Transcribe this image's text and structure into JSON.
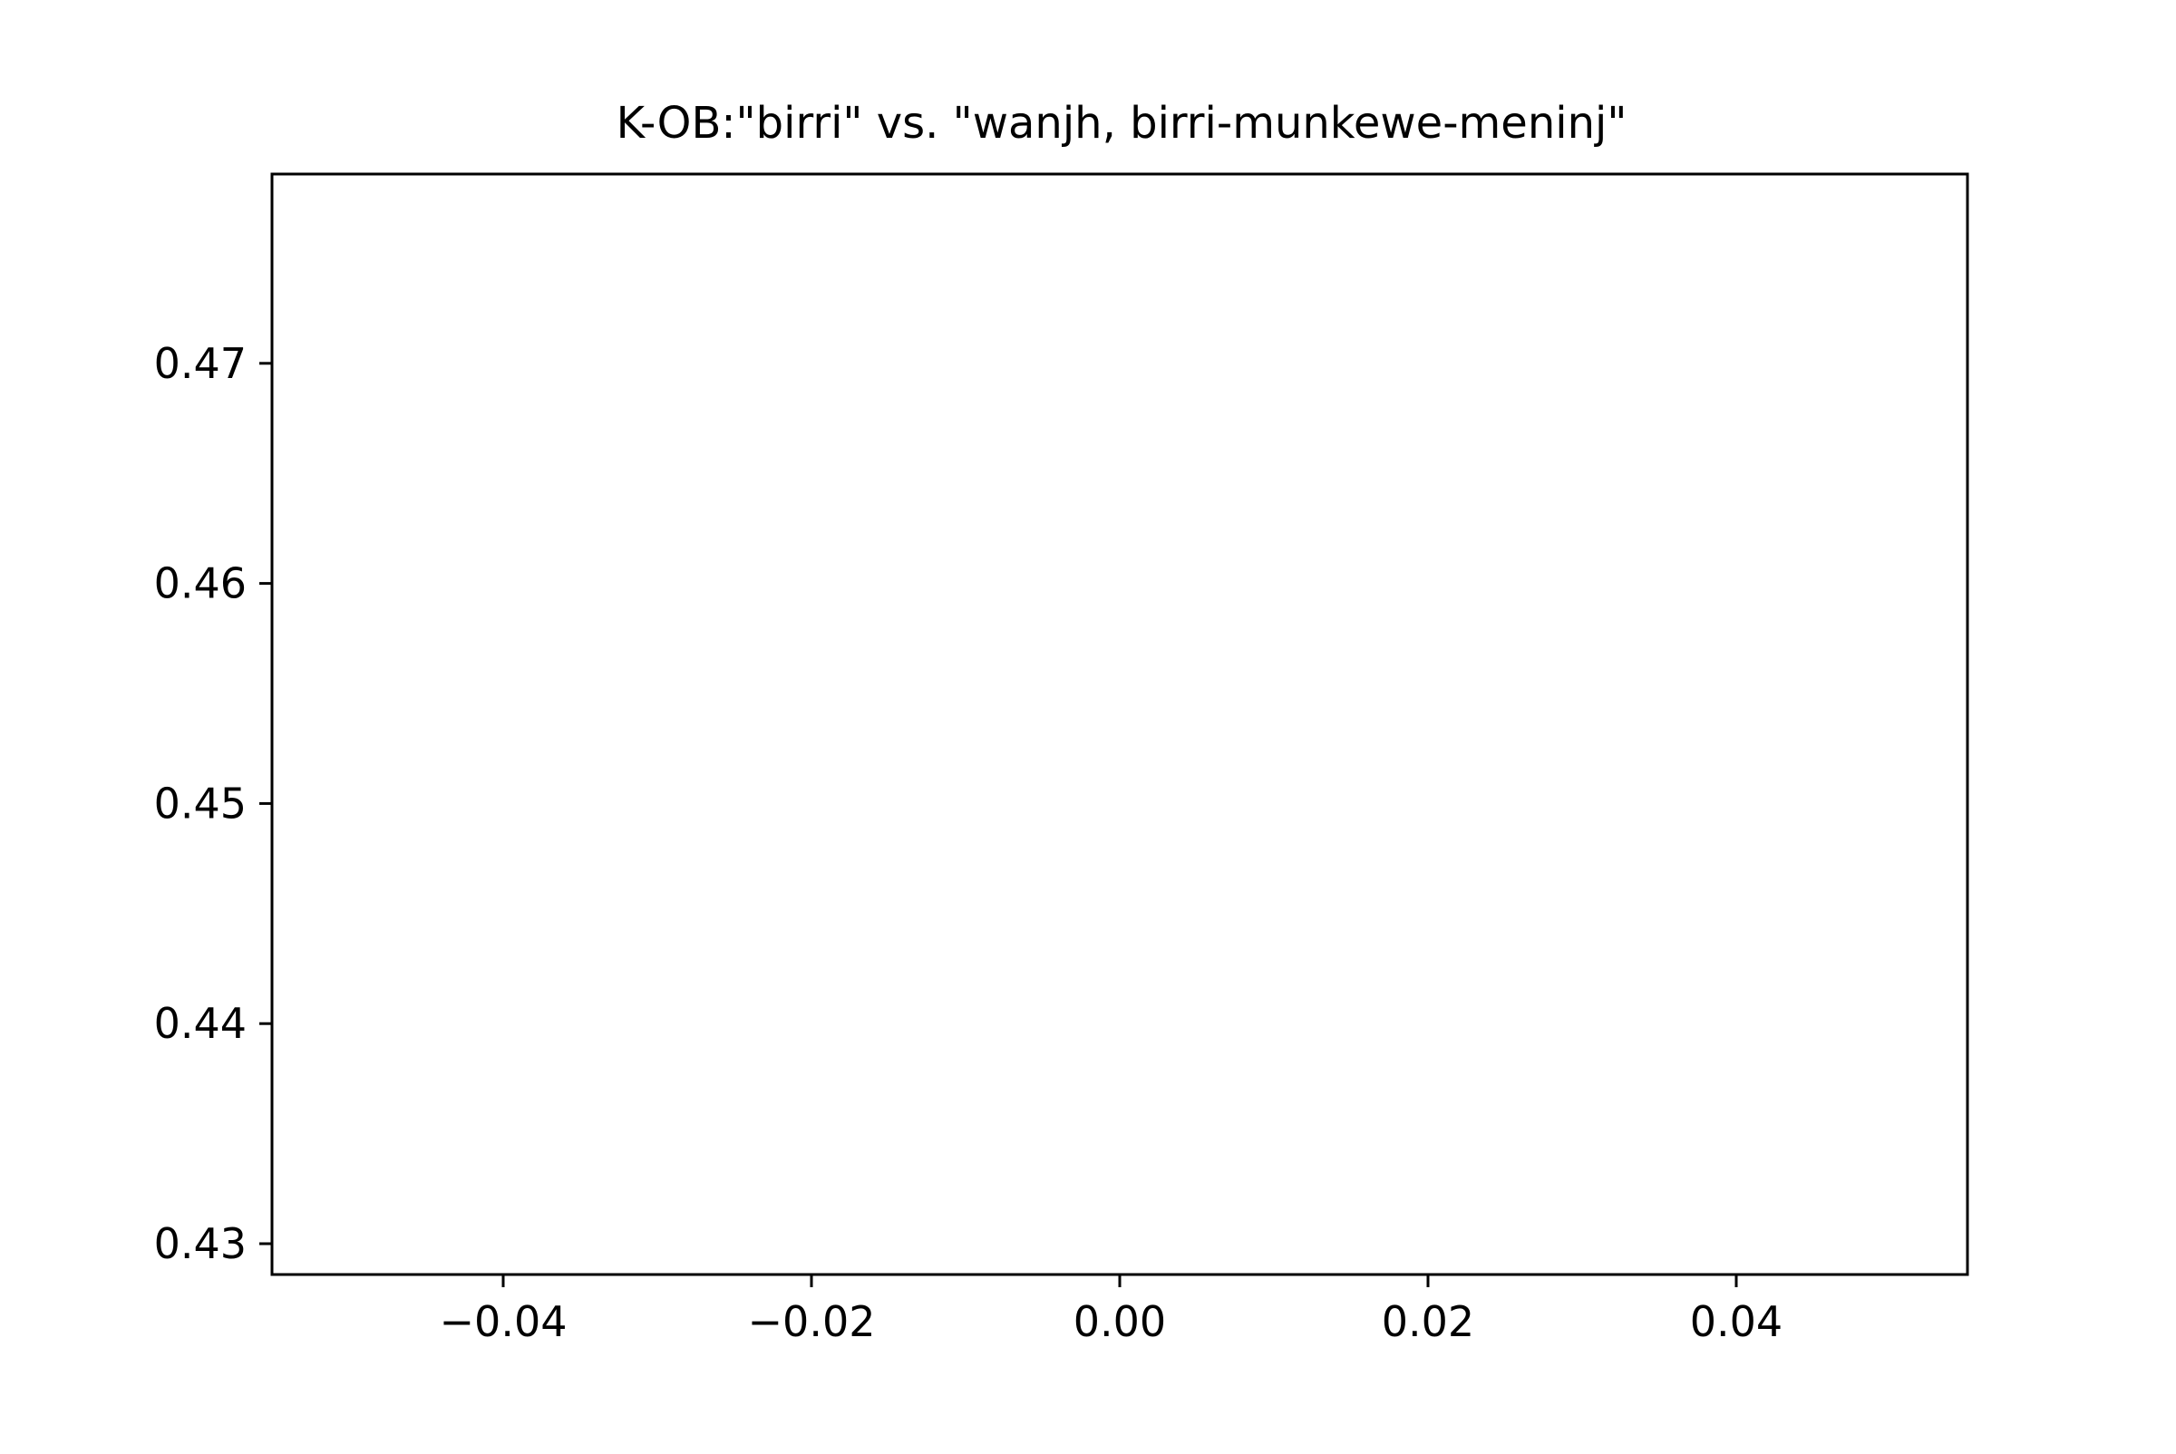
{
  "chart_data": {
    "type": "scatter",
    "title": "K-OB:\"birri\" vs. \"wanjh, birri-munkewe-meninj\"",
    "xlabel": "",
    "ylabel": "",
    "xlim": [
      -0.055,
      0.055
    ],
    "ylim": [
      0.4286,
      0.4786
    ],
    "x_ticks": [
      -0.04,
      -0.02,
      0.0,
      0.02,
      0.04
    ],
    "x_tick_labels": [
      "−0.04",
      "−0.02",
      "0.00",
      "0.02",
      "0.04"
    ],
    "y_ticks": [
      0.43,
      0.44,
      0.45,
      0.46,
      0.47
    ],
    "y_tick_labels": [
      "0.43",
      "0.44",
      "0.45",
      "0.46",
      "0.47"
    ],
    "series": [],
    "grid": false,
    "legend": "none"
  }
}
